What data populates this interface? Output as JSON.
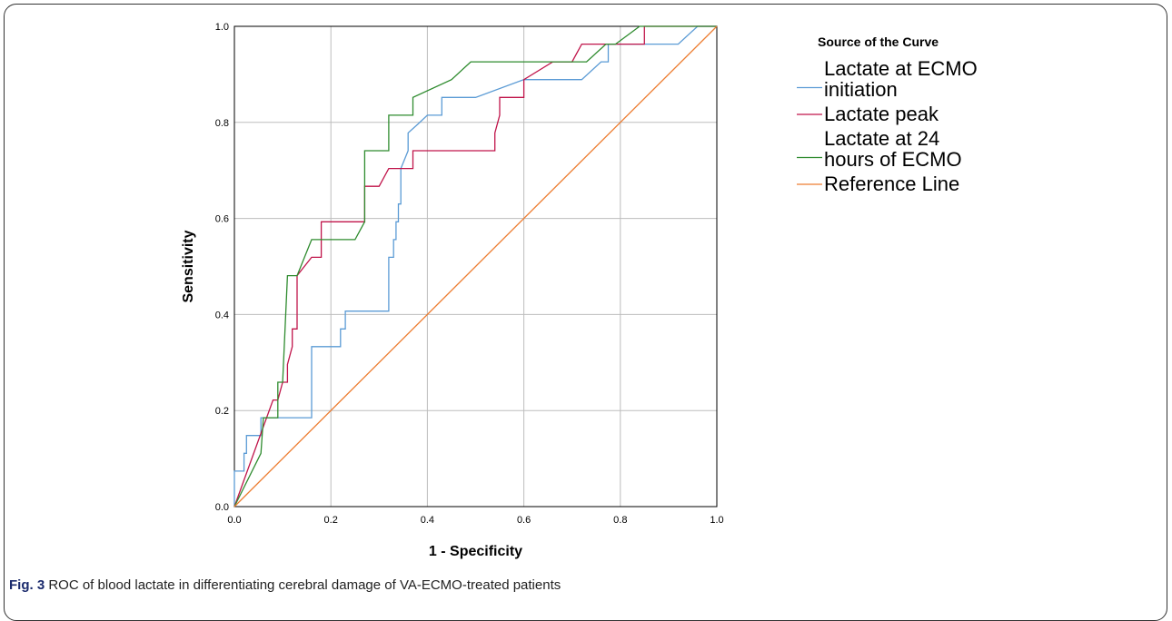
{
  "chart_data": {
    "type": "line",
    "title": "",
    "xlabel": "1 - Specificity",
    "ylabel": "Sensitivity",
    "xlim": [
      0,
      1
    ],
    "ylim": [
      0,
      1
    ],
    "xticks": [
      "0.0",
      "0.2",
      "0.4",
      "0.6",
      "0.8",
      "1.0"
    ],
    "yticks": [
      "0.0",
      "0.2",
      "0.4",
      "0.6",
      "0.8",
      "1.0"
    ],
    "grid": true,
    "legend": {
      "title": "Source of the Curve",
      "placement": "right"
    },
    "series": [
      {
        "name": "Lactate at ECMO initiation",
        "legend_lines": [
          "Lactate at ECMO",
          "initiation"
        ],
        "color": "#5b9bd5",
        "points": [
          [
            0,
            0
          ],
          [
            0,
            0.074
          ],
          [
            0.02,
            0.074
          ],
          [
            0.02,
            0.111
          ],
          [
            0.025,
            0.111
          ],
          [
            0.025,
            0.148
          ],
          [
            0.055,
            0.148
          ],
          [
            0.055,
            0.185
          ],
          [
            0.16,
            0.185
          ],
          [
            0.16,
            0.333
          ],
          [
            0.22,
            0.333
          ],
          [
            0.22,
            0.37
          ],
          [
            0.23,
            0.37
          ],
          [
            0.23,
            0.407
          ],
          [
            0.32,
            0.407
          ],
          [
            0.32,
            0.519
          ],
          [
            0.33,
            0.519
          ],
          [
            0.33,
            0.556
          ],
          [
            0.335,
            0.556
          ],
          [
            0.335,
            0.593
          ],
          [
            0.34,
            0.593
          ],
          [
            0.34,
            0.63
          ],
          [
            0.345,
            0.63
          ],
          [
            0.345,
            0.704
          ],
          [
            0.36,
            0.741
          ],
          [
            0.36,
            0.778
          ],
          [
            0.38,
            0.796
          ],
          [
            0.4,
            0.815
          ],
          [
            0.42,
            0.815
          ],
          [
            0.43,
            0.815
          ],
          [
            0.43,
            0.852
          ],
          [
            0.5,
            0.852
          ],
          [
            0.6,
            0.889
          ],
          [
            0.72,
            0.889
          ],
          [
            0.76,
            0.926
          ],
          [
            0.775,
            0.926
          ],
          [
            0.775,
            0.963
          ],
          [
            0.92,
            0.963
          ],
          [
            0.96,
            1.0
          ],
          [
            1.0,
            1.0
          ]
        ]
      },
      {
        "name": "Lactate peak",
        "legend_lines": [
          "Lactate peak"
        ],
        "color": "#c0144a",
        "points": [
          [
            0,
            0
          ],
          [
            0.08,
            0.222
          ],
          [
            0.09,
            0.222
          ],
          [
            0.1,
            0.259
          ],
          [
            0.11,
            0.259
          ],
          [
            0.11,
            0.296
          ],
          [
            0.12,
            0.333
          ],
          [
            0.12,
            0.37
          ],
          [
            0.13,
            0.37
          ],
          [
            0.13,
            0.481
          ],
          [
            0.16,
            0.519
          ],
          [
            0.18,
            0.519
          ],
          [
            0.18,
            0.593
          ],
          [
            0.25,
            0.593
          ],
          [
            0.27,
            0.593
          ],
          [
            0.27,
            0.667
          ],
          [
            0.29,
            0.667
          ],
          [
            0.3,
            0.667
          ],
          [
            0.32,
            0.704
          ],
          [
            0.37,
            0.704
          ],
          [
            0.37,
            0.741
          ],
          [
            0.54,
            0.741
          ],
          [
            0.54,
            0.778
          ],
          [
            0.55,
            0.815
          ],
          [
            0.55,
            0.852
          ],
          [
            0.6,
            0.852
          ],
          [
            0.6,
            0.889
          ],
          [
            0.66,
            0.926
          ],
          [
            0.7,
            0.926
          ],
          [
            0.72,
            0.963
          ],
          [
            0.85,
            0.963
          ],
          [
            0.85,
            1.0
          ],
          [
            1.0,
            1.0
          ]
        ]
      },
      {
        "name": "Lactate  at 24 hours of ECMO",
        "legend_lines": [
          "Lactate  at 24",
          "hours of ECMO"
        ],
        "color": "#2e8b2e",
        "points": [
          [
            0,
            0
          ],
          [
            0.055,
            0.111
          ],
          [
            0.06,
            0.185
          ],
          [
            0.09,
            0.185
          ],
          [
            0.09,
            0.259
          ],
          [
            0.1,
            0.259
          ],
          [
            0.11,
            0.481
          ],
          [
            0.13,
            0.481
          ],
          [
            0.16,
            0.556
          ],
          [
            0.25,
            0.556
          ],
          [
            0.27,
            0.593
          ],
          [
            0.27,
            0.741
          ],
          [
            0.32,
            0.741
          ],
          [
            0.32,
            0.815
          ],
          [
            0.37,
            0.815
          ],
          [
            0.37,
            0.852
          ],
          [
            0.45,
            0.889
          ],
          [
            0.49,
            0.926
          ],
          [
            0.6,
            0.926
          ],
          [
            0.73,
            0.926
          ],
          [
            0.77,
            0.963
          ],
          [
            0.79,
            0.963
          ],
          [
            0.84,
            1.0
          ],
          [
            1.0,
            1.0
          ]
        ]
      },
      {
        "name": "Reference Line",
        "legend_lines": [
          "Reference Line"
        ],
        "color": "#ed7d31",
        "points": [
          [
            0,
            0
          ],
          [
            1,
            1
          ]
        ]
      }
    ]
  },
  "caption": {
    "label": "Fig. 3",
    "text": " ROC of blood lactate in differentiating cerebral damage of VA-ECMO-treated patients"
  }
}
